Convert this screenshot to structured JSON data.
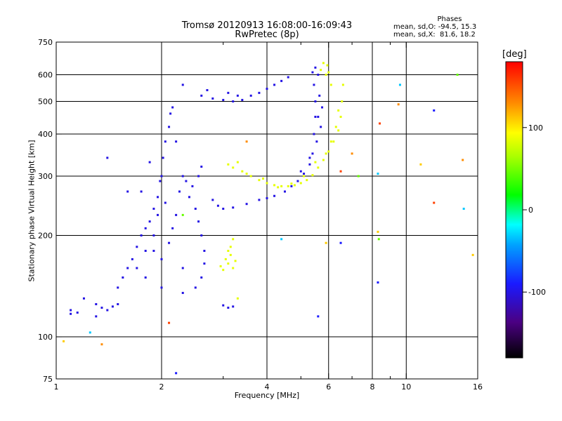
{
  "title_line1": "Tromsø 20120913 16:08:00-16:09:43",
  "title_line2": "RwPretec (8p)",
  "stats": {
    "header": "Phases",
    "o_mode": "mean, sd,O: -94.5, 15.3",
    "x_mode": "mean, sd,X:  81.6, 18.2"
  },
  "colorbar": {
    "unit": "[deg]",
    "ticks": [
      {
        "value": 100,
        "label": "100"
      },
      {
        "value": 0,
        "label": "0"
      },
      {
        "value": -100,
        "label": "-100"
      }
    ],
    "range": [
      -180,
      180
    ]
  },
  "chart_data": {
    "type": "scatter",
    "xlabel": "Frequency [MHz]",
    "ylabel": "Stationary phase Virtual Height [km]",
    "xscale": "log",
    "yscale": "log",
    "xlim": [
      1,
      16
    ],
    "ylim": [
      75,
      750
    ],
    "xticks": [
      {
        "value": 1,
        "label": "1"
      },
      {
        "value": 2,
        "label": "2"
      },
      {
        "value": 4,
        "label": "4"
      },
      {
        "value": 6,
        "label": "6"
      },
      {
        "value": 8,
        "label": "8"
      },
      {
        "value": 10,
        "label": "10"
      },
      {
        "value": 16,
        "label": "16"
      }
    ],
    "xminor": [
      3,
      5,
      7,
      9
    ],
    "yticks": [
      {
        "value": 75,
        "label": "75"
      },
      {
        "value": 100,
        "label": "100"
      },
      {
        "value": 200,
        "label": "200"
      },
      {
        "value": 300,
        "label": "300"
      },
      {
        "value": 400,
        "label": "400"
      },
      {
        "value": 500,
        "label": "500"
      },
      {
        "value": 600,
        "label": "600"
      },
      {
        "value": 750,
        "label": "750"
      }
    ],
    "grid_x": [
      2,
      4,
      6,
      8,
      10
    ],
    "grid_y": [
      100,
      200,
      300,
      400,
      500,
      600
    ],
    "series": [
      {
        "mode": "O",
        "phase_deg": -100,
        "points": [
          [
            1.1,
            117
          ],
          [
            1.15,
            118
          ],
          [
            1.3,
            125
          ],
          [
            1.35,
            122
          ],
          [
            1.4,
            120
          ],
          [
            1.45,
            123
          ],
          [
            1.5,
            125
          ],
          [
            1.5,
            140
          ],
          [
            1.55,
            150
          ],
          [
            1.6,
            160
          ],
          [
            1.65,
            170
          ],
          [
            1.7,
            185
          ],
          [
            1.75,
            200
          ],
          [
            1.8,
            210
          ],
          [
            1.85,
            220
          ],
          [
            1.9,
            240
          ],
          [
            1.95,
            260
          ],
          [
            1.98,
            290
          ],
          [
            2.0,
            300
          ],
          [
            2.02,
            340
          ],
          [
            2.05,
            380
          ],
          [
            2.1,
            420
          ],
          [
            2.12,
            460
          ],
          [
            2.15,
            480
          ],
          [
            2.2,
            380
          ],
          [
            2.3,
            300
          ],
          [
            2.4,
            260
          ],
          [
            2.5,
            240
          ],
          [
            2.55,
            220
          ],
          [
            2.6,
            200
          ],
          [
            2.65,
            180
          ],
          [
            2.65,
            165
          ],
          [
            2.6,
            150
          ],
          [
            2.5,
            140
          ],
          [
            2.3,
            135
          ],
          [
            2.0,
            140
          ],
          [
            1.8,
            150
          ],
          [
            1.7,
            160
          ],
          [
            1.8,
            180
          ],
          [
            1.9,
            200
          ],
          [
            2.0,
            170
          ],
          [
            2.1,
            190
          ],
          [
            2.2,
            230
          ],
          [
            2.25,
            270
          ],
          [
            2.35,
            290
          ],
          [
            2.45,
            280
          ],
          [
            2.55,
            300
          ],
          [
            2.6,
            320
          ],
          [
            1.85,
            330
          ],
          [
            1.75,
            270
          ],
          [
            1.95,
            230
          ],
          [
            2.05,
            250
          ],
          [
            2.15,
            210
          ],
          [
            2.3,
            160
          ],
          [
            2.8,
            255
          ],
          [
            2.9,
            245
          ],
          [
            3.0,
            240
          ],
          [
            3.2,
            242
          ],
          [
            3.5,
            248
          ],
          [
            3.8,
            255
          ],
          [
            4.0,
            258
          ],
          [
            4.2,
            262
          ],
          [
            4.5,
            270
          ],
          [
            4.7,
            280
          ],
          [
            4.9,
            290
          ],
          [
            5.1,
            305
          ],
          [
            5.3,
            325
          ],
          [
            5.4,
            350
          ],
          [
            5.45,
            400
          ],
          [
            5.5,
            450
          ],
          [
            5.5,
            500
          ],
          [
            5.45,
            560
          ],
          [
            5.4,
            610
          ],
          [
            5.5,
            630
          ],
          [
            5.6,
            600
          ],
          [
            5.65,
            520
          ],
          [
            5.6,
            450
          ],
          [
            5.55,
            380
          ],
          [
            5.3,
            340
          ],
          [
            5.0,
            310
          ],
          [
            5.7,
            420
          ],
          [
            5.75,
            480
          ],
          [
            2.6,
            520
          ],
          [
            2.8,
            510
          ],
          [
            3.0,
            505
          ],
          [
            3.2,
            500
          ],
          [
            3.4,
            505
          ],
          [
            3.6,
            520
          ],
          [
            3.8,
            530
          ],
          [
            4.0,
            545
          ],
          [
            4.2,
            560
          ],
          [
            4.4,
            575
          ],
          [
            4.6,
            590
          ],
          [
            2.7,
            540
          ],
          [
            3.1,
            530
          ],
          [
            3.3,
            520
          ],
          [
            2.3,
            560
          ],
          [
            1.2,
            130
          ],
          [
            1.3,
            115
          ],
          [
            1.1,
            120
          ],
          [
            3.0,
            124
          ],
          [
            3.1,
            122
          ],
          [
            3.2,
            123
          ],
          [
            1.9,
            180
          ],
          [
            1.6,
            270
          ],
          [
            1.4,
            340
          ]
        ]
      },
      {
        "mode": "X",
        "phase_deg": 85,
        "points": [
          [
            3.1,
            325
          ],
          [
            3.2,
            318
          ],
          [
            3.4,
            310
          ],
          [
            3.6,
            300
          ],
          [
            3.8,
            292
          ],
          [
            4.0,
            286
          ],
          [
            4.2,
            282
          ],
          [
            4.4,
            280
          ],
          [
            4.6,
            280
          ],
          [
            4.8,
            282
          ],
          [
            5.0,
            286
          ],
          [
            5.2,
            292
          ],
          [
            5.4,
            302
          ],
          [
            5.6,
            318
          ],
          [
            5.8,
            335
          ],
          [
            6.0,
            355
          ],
          [
            6.2,
            380
          ],
          [
            6.4,
            410
          ],
          [
            6.5,
            450
          ],
          [
            6.55,
            500
          ],
          [
            6.6,
            560
          ],
          [
            5.9,
            600
          ],
          [
            5.95,
            640
          ],
          [
            6.0,
            610
          ],
          [
            6.1,
            560
          ],
          [
            5.7,
            620
          ],
          [
            5.8,
            650
          ],
          [
            3.3,
            330
          ],
          [
            3.5,
            305
          ],
          [
            3.9,
            295
          ],
          [
            4.3,
            278
          ],
          [
            4.7,
            285
          ],
          [
            5.1,
            300
          ],
          [
            5.5,
            330
          ],
          [
            5.9,
            350
          ],
          [
            6.1,
            380
          ],
          [
            6.3,
            420
          ],
          [
            6.4,
            470
          ],
          [
            3.05,
            170
          ],
          [
            3.1,
            165
          ],
          [
            3.15,
            175
          ],
          [
            3.2,
            160
          ],
          [
            3.1,
            180
          ],
          [
            3.0,
            158
          ],
          [
            3.15,
            185
          ],
          [
            3.2,
            195
          ],
          [
            2.95,
            162
          ],
          [
            3.25,
            168
          ],
          [
            3.3,
            130
          ]
        ]
      },
      {
        "mode": "noise",
        "phase_deg": null,
        "points": [
          [
            1.35,
            95
          ],
          [
            1.25,
            103
          ],
          [
            1.05,
            97
          ],
          [
            2.2,
            78
          ],
          [
            2.1,
            110
          ],
          [
            2.3,
            230
          ],
          [
            3.5,
            380
          ],
          [
            4.4,
            195
          ],
          [
            5.9,
            190
          ],
          [
            6.5,
            190
          ],
          [
            6.5,
            310
          ],
          [
            7.3,
            300
          ],
          [
            7.0,
            350
          ],
          [
            8.3,
            305
          ],
          [
            8.3,
            205
          ],
          [
            8.3,
            145
          ],
          [
            8.4,
            430
          ],
          [
            8.35,
            195
          ],
          [
            9.5,
            490
          ],
          [
            9.6,
            560
          ],
          [
            11,
            325
          ],
          [
            12,
            470
          ],
          [
            12,
            250
          ],
          [
            14,
            600
          ],
          [
            14.5,
            335
          ],
          [
            14.6,
            240
          ],
          [
            15.5,
            175
          ],
          [
            5.6,
            115
          ]
        ]
      }
    ]
  }
}
